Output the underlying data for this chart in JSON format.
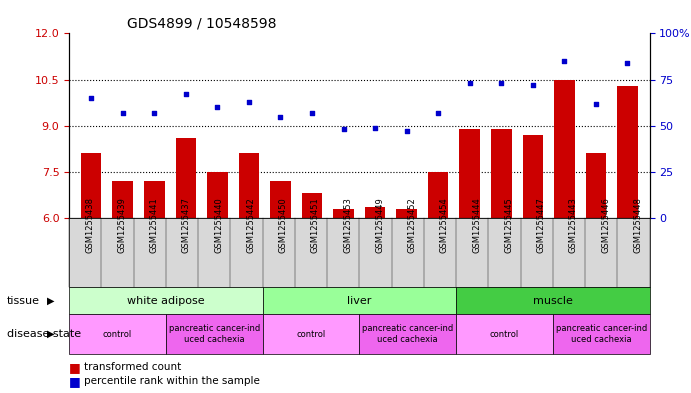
{
  "title": "GDS4899 / 10548598",
  "samples": [
    "GSM1255438",
    "GSM1255439",
    "GSM1255441",
    "GSM1255437",
    "GSM1255440",
    "GSM1255442",
    "GSM1255450",
    "GSM1255451",
    "GSM1255453",
    "GSM1255449",
    "GSM1255452",
    "GSM1255454",
    "GSM1255444",
    "GSM1255445",
    "GSM1255447",
    "GSM1255443",
    "GSM1255446",
    "GSM1255448"
  ],
  "transformed_count": [
    8.1,
    7.2,
    7.2,
    8.6,
    7.5,
    8.1,
    7.2,
    6.8,
    6.3,
    6.35,
    6.3,
    7.5,
    8.9,
    8.9,
    8.7,
    10.5,
    8.1,
    10.3
  ],
  "percentile_rank": [
    65,
    57,
    57,
    67,
    60,
    63,
    55,
    57,
    48,
    49,
    47,
    57,
    73,
    73,
    72,
    85,
    62,
    84
  ],
  "ylim_left": [
    6,
    12
  ],
  "ylim_right": [
    0,
    100
  ],
  "yticks_left": [
    6,
    7.5,
    9,
    10.5,
    12
  ],
  "yticks_right": [
    0,
    25,
    50,
    75,
    100
  ],
  "hlines": [
    7.5,
    9,
    10.5
  ],
  "tissue_groups": [
    {
      "label": "white adipose",
      "start": 0,
      "end": 6,
      "color": "#ccffcc"
    },
    {
      "label": "liver",
      "start": 6,
      "end": 12,
      "color": "#99ff99"
    },
    {
      "label": "muscle",
      "start": 12,
      "end": 18,
      "color": "#44cc44"
    }
  ],
  "disease_groups": [
    {
      "label": "control",
      "start": 0,
      "end": 3,
      "color": "#ff99ff"
    },
    {
      "label": "pancreatic cancer-ind\nuced cachexia",
      "start": 3,
      "end": 6,
      "color": "#ee66ee"
    },
    {
      "label": "control",
      "start": 6,
      "end": 9,
      "color": "#ff99ff"
    },
    {
      "label": "pancreatic cancer-ind\nuced cachexia",
      "start": 9,
      "end": 12,
      "color": "#ee66ee"
    },
    {
      "label": "control",
      "start": 12,
      "end": 15,
      "color": "#ff99ff"
    },
    {
      "label": "pancreatic cancer-ind\nuced cachexia",
      "start": 15,
      "end": 18,
      "color": "#ee66ee"
    }
  ],
  "bar_color": "#cc0000",
  "dot_color": "#0000cc",
  "left_axis_color": "#cc0000",
  "right_axis_color": "#0000cc",
  "ymin": 6
}
